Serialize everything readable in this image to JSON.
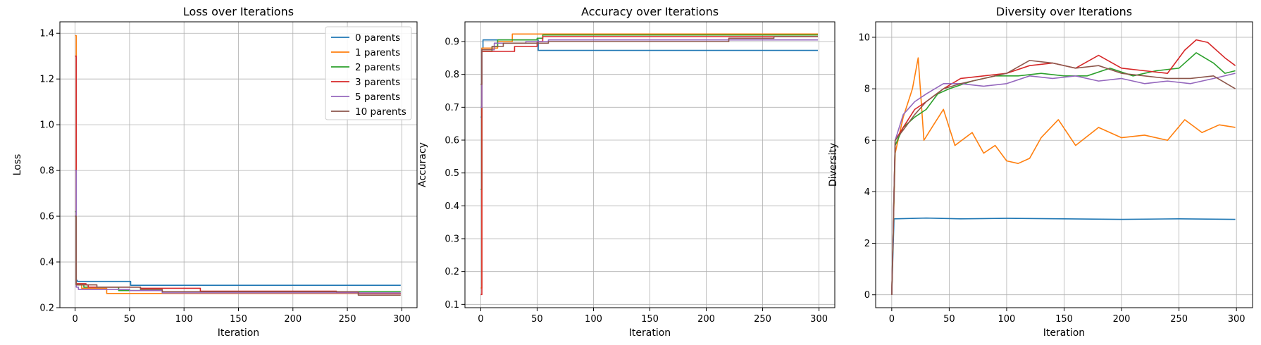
{
  "chart_data": [
    {
      "type": "line",
      "title": "Loss over Iterations",
      "xlabel": "Iteration",
      "ylabel": "Loss",
      "xlim": [
        -14,
        314
      ],
      "ylim": [
        0.2,
        1.45
      ],
      "xticks": [
        0,
        50,
        100,
        150,
        200,
        250,
        300
      ],
      "yticks": [
        0.2,
        0.4,
        0.6,
        0.8,
        1.0,
        1.2,
        1.4
      ],
      "ytick_labels": [
        "0.2",
        "0.4",
        "0.6",
        "0.8",
        "1.0",
        "1.2",
        "1.4"
      ],
      "grid": true,
      "legend": "top-right",
      "series": [
        {
          "name": "0 parents",
          "color": "#1f77b4",
          "step": true,
          "points": [
            [
              0,
              0.6
            ],
            [
              1,
              0.32
            ],
            [
              2,
              0.315
            ],
            [
              50,
              0.315
            ],
            [
              51,
              0.298
            ],
            [
              299,
              0.298
            ]
          ]
        },
        {
          "name": "1 parents",
          "color": "#ff7f0e",
          "step": true,
          "points": [
            [
              0,
              1.39
            ],
            [
              1,
              0.3
            ],
            [
              5,
              0.3
            ],
            [
              6,
              0.285
            ],
            [
              28,
              0.285
            ],
            [
              29,
              0.262
            ],
            [
              299,
              0.262
            ]
          ]
        },
        {
          "name": "2 parents",
          "color": "#2ca02c",
          "step": true,
          "points": [
            [
              0,
              0.62
            ],
            [
              1,
              0.3
            ],
            [
              8,
              0.29
            ],
            [
              40,
              0.275
            ],
            [
              80,
              0.27
            ],
            [
              299,
              0.27
            ]
          ]
        },
        {
          "name": "3 parents",
          "color": "#d62728",
          "step": true,
          "points": [
            [
              0,
              1.3
            ],
            [
              1,
              0.305
            ],
            [
              10,
              0.3
            ],
            [
              12,
              0.29
            ],
            [
              60,
              0.285
            ],
            [
              115,
              0.272
            ],
            [
              240,
              0.268
            ],
            [
              260,
              0.262
            ],
            [
              299,
              0.262
            ]
          ]
        },
        {
          "name": "5 parents",
          "color": "#9467bd",
          "step": true,
          "points": [
            [
              0,
              0.8
            ],
            [
              1,
              0.29
            ],
            [
              3,
              0.28
            ],
            [
              50,
              0.275
            ],
            [
              80,
              0.265
            ],
            [
              299,
              0.265
            ]
          ]
        },
        {
          "name": "10 parents",
          "color": "#8c564b",
          "step": true,
          "points": [
            [
              0,
              0.6
            ],
            [
              1,
              0.3
            ],
            [
              20,
              0.29
            ],
            [
              60,
              0.28
            ],
            [
              80,
              0.27
            ],
            [
              260,
              0.255
            ],
            [
              299,
              0.255
            ]
          ]
        }
      ]
    },
    {
      "type": "line",
      "title": "Accuracy over Iterations",
      "xlabel": "Iteration",
      "ylabel": "Accuracy",
      "xlim": [
        -14,
        314
      ],
      "ylim": [
        0.09,
        0.96
      ],
      "xticks": [
        0,
        50,
        100,
        150,
        200,
        250,
        300
      ],
      "yticks": [
        0.1,
        0.2,
        0.3,
        0.4,
        0.5,
        0.6,
        0.7,
        0.8,
        0.9
      ],
      "ytick_labels": [
        "0.1",
        "0.2",
        "0.3",
        "0.4",
        "0.5",
        "0.6",
        "0.7",
        "0.8",
        "0.9"
      ],
      "grid": true,
      "legend": "none",
      "series": [
        {
          "name": "0 parents",
          "color": "#1f77b4",
          "step": true,
          "points": [
            [
              0,
              0.67
            ],
            [
              1,
              0.88
            ],
            [
              2,
              0.905
            ],
            [
              50,
              0.905
            ],
            [
              51,
              0.873
            ],
            [
              299,
              0.873
            ]
          ]
        },
        {
          "name": "1 parents",
          "color": "#ff7f0e",
          "step": true,
          "points": [
            [
              0,
              0.15
            ],
            [
              1,
              0.88
            ],
            [
              15,
              0.9
            ],
            [
              28,
              0.923
            ],
            [
              299,
              0.923
            ]
          ]
        },
        {
          "name": "2 parents",
          "color": "#2ca02c",
          "step": true,
          "points": [
            [
              0,
              0.45
            ],
            [
              1,
              0.87
            ],
            [
              10,
              0.885
            ],
            [
              15,
              0.905
            ],
            [
              50,
              0.91
            ],
            [
              55,
              0.92
            ],
            [
              299,
              0.92
            ]
          ]
        },
        {
          "name": "3 parents",
          "color": "#d62728",
          "step": true,
          "points": [
            [
              0,
              0.13
            ],
            [
              1,
              0.87
            ],
            [
              30,
              0.885
            ],
            [
              50,
              0.9
            ],
            [
              55,
              0.915
            ],
            [
              299,
              0.915
            ]
          ]
        },
        {
          "name": "5 parents",
          "color": "#9467bd",
          "step": true,
          "points": [
            [
              0,
              0.7
            ],
            [
              1,
              0.875
            ],
            [
              12,
              0.895
            ],
            [
              40,
              0.9
            ],
            [
              60,
              0.905
            ],
            [
              299,
              0.905
            ]
          ]
        },
        {
          "name": "10 parents",
          "color": "#8c564b",
          "step": true,
          "points": [
            [
              0,
              0.77
            ],
            [
              1,
              0.875
            ],
            [
              10,
              0.885
            ],
            [
              20,
              0.895
            ],
            [
              60,
              0.9
            ],
            [
              220,
              0.91
            ],
            [
              260,
              0.915
            ],
            [
              299,
              0.915
            ]
          ]
        }
      ]
    },
    {
      "type": "line",
      "title": "Diversity over Iterations",
      "xlabel": "Iteration",
      "ylabel": "Diversity",
      "xlim": [
        -14,
        314
      ],
      "ylim": [
        -0.5,
        10.6
      ],
      "xticks": [
        0,
        50,
        100,
        150,
        200,
        250,
        300
      ],
      "yticks": [
        0,
        2,
        4,
        6,
        8,
        10
      ],
      "ytick_labels": [
        "0",
        "2",
        "4",
        "6",
        "8",
        "10"
      ],
      "grid": true,
      "legend": "none",
      "series": [
        {
          "name": "0 parents",
          "color": "#1f77b4",
          "step": false,
          "points": [
            [
              0,
              0
            ],
            [
              2,
              2.95
            ],
            [
              30,
              2.98
            ],
            [
              60,
              2.95
            ],
            [
              100,
              2.97
            ],
            [
              150,
              2.95
            ],
            [
              200,
              2.93
            ],
            [
              250,
              2.95
            ],
            [
              299,
              2.93
            ]
          ]
        },
        {
          "name": "1 parents",
          "color": "#ff7f0e",
          "step": false,
          "points": [
            [
              0,
              0
            ],
            [
              3,
              5.5
            ],
            [
              10,
              6.9
            ],
            [
              18,
              8.0
            ],
            [
              23,
              9.2
            ],
            [
              28,
              6.0
            ],
            [
              35,
              6.5
            ],
            [
              45,
              7.2
            ],
            [
              55,
              5.8
            ],
            [
              70,
              6.3
            ],
            [
              80,
              5.5
            ],
            [
              90,
              5.8
            ],
            [
              100,
              5.2
            ],
            [
              110,
              5.1
            ],
            [
              120,
              5.3
            ],
            [
              130,
              6.1
            ],
            [
              145,
              6.8
            ],
            [
              160,
              5.8
            ],
            [
              180,
              6.5
            ],
            [
              200,
              6.1
            ],
            [
              220,
              6.2
            ],
            [
              240,
              6.0
            ],
            [
              255,
              6.8
            ],
            [
              270,
              6.3
            ],
            [
              285,
              6.6
            ],
            [
              299,
              6.5
            ]
          ]
        },
        {
          "name": "2 parents",
          "color": "#2ca02c",
          "step": false,
          "points": [
            [
              0,
              0
            ],
            [
              3,
              5.8
            ],
            [
              10,
              6.5
            ],
            [
              20,
              6.9
            ],
            [
              30,
              7.2
            ],
            [
              40,
              7.8
            ],
            [
              50,
              8.0
            ],
            [
              70,
              8.3
            ],
            [
              90,
              8.5
            ],
            [
              110,
              8.5
            ],
            [
              130,
              8.6
            ],
            [
              150,
              8.5
            ],
            [
              170,
              8.5
            ],
            [
              190,
              8.8
            ],
            [
              210,
              8.5
            ],
            [
              230,
              8.7
            ],
            [
              250,
              8.8
            ],
            [
              265,
              9.4
            ],
            [
              280,
              9.0
            ],
            [
              290,
              8.6
            ],
            [
              299,
              8.7
            ]
          ]
        },
        {
          "name": "3 parents",
          "color": "#d62728",
          "step": false,
          "points": [
            [
              0,
              0
            ],
            [
              3,
              6.0
            ],
            [
              10,
              6.5
            ],
            [
              20,
              7.2
            ],
            [
              30,
              7.5
            ],
            [
              45,
              8.0
            ],
            [
              60,
              8.4
            ],
            [
              80,
              8.5
            ],
            [
              100,
              8.6
            ],
            [
              120,
              8.9
            ],
            [
              140,
              9.0
            ],
            [
              160,
              8.8
            ],
            [
              180,
              9.3
            ],
            [
              200,
              8.8
            ],
            [
              220,
              8.7
            ],
            [
              240,
              8.6
            ],
            [
              255,
              9.5
            ],
            [
              265,
              9.9
            ],
            [
              275,
              9.8
            ],
            [
              290,
              9.2
            ],
            [
              299,
              8.9
            ]
          ]
        },
        {
          "name": "5 parents",
          "color": "#9467bd",
          "step": false,
          "points": [
            [
              0,
              0
            ],
            [
              3,
              6.0
            ],
            [
              10,
              7.0
            ],
            [
              20,
              7.5
            ],
            [
              30,
              7.8
            ],
            [
              45,
              8.2
            ],
            [
              60,
              8.2
            ],
            [
              80,
              8.1
            ],
            [
              100,
              8.2
            ],
            [
              120,
              8.5
            ],
            [
              140,
              8.4
            ],
            [
              160,
              8.5
            ],
            [
              180,
              8.3
            ],
            [
              200,
              8.4
            ],
            [
              220,
              8.2
            ],
            [
              240,
              8.3
            ],
            [
              260,
              8.2
            ],
            [
              280,
              8.4
            ],
            [
              299,
              8.6
            ]
          ]
        },
        {
          "name": "10 parents",
          "color": "#8c564b",
          "step": false,
          "points": [
            [
              0,
              0
            ],
            [
              3,
              6.0
            ],
            [
              10,
              6.4
            ],
            [
              20,
              7.0
            ],
            [
              30,
              7.5
            ],
            [
              45,
              8.0
            ],
            [
              60,
              8.2
            ],
            [
              80,
              8.4
            ],
            [
              100,
              8.6
            ],
            [
              120,
              9.1
            ],
            [
              140,
              9.0
            ],
            [
              160,
              8.8
            ],
            [
              180,
              8.9
            ],
            [
              200,
              8.6
            ],
            [
              220,
              8.5
            ],
            [
              240,
              8.4
            ],
            [
              260,
              8.4
            ],
            [
              280,
              8.5
            ],
            [
              299,
              8.0
            ]
          ]
        }
      ]
    }
  ]
}
